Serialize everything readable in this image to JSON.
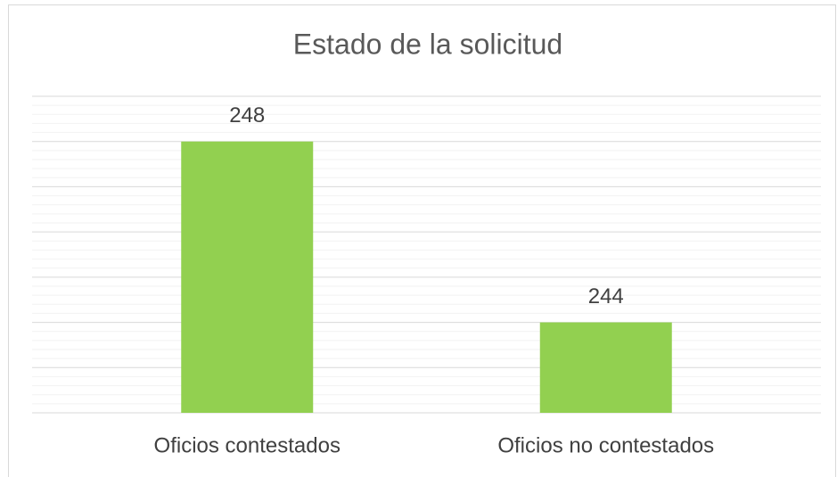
{
  "chart_data": {
    "type": "bar",
    "title": "Estado de la solicitud",
    "categories": [
      "Oficios contestados",
      "Oficios no contestados"
    ],
    "values": [
      248,
      244
    ],
    "color": "#92d050",
    "ylim": [
      242,
      249
    ],
    "yticks": [
      242,
      243,
      244,
      245,
      246,
      247,
      248,
      249
    ],
    "grid": true,
    "minor_grid": true
  }
}
